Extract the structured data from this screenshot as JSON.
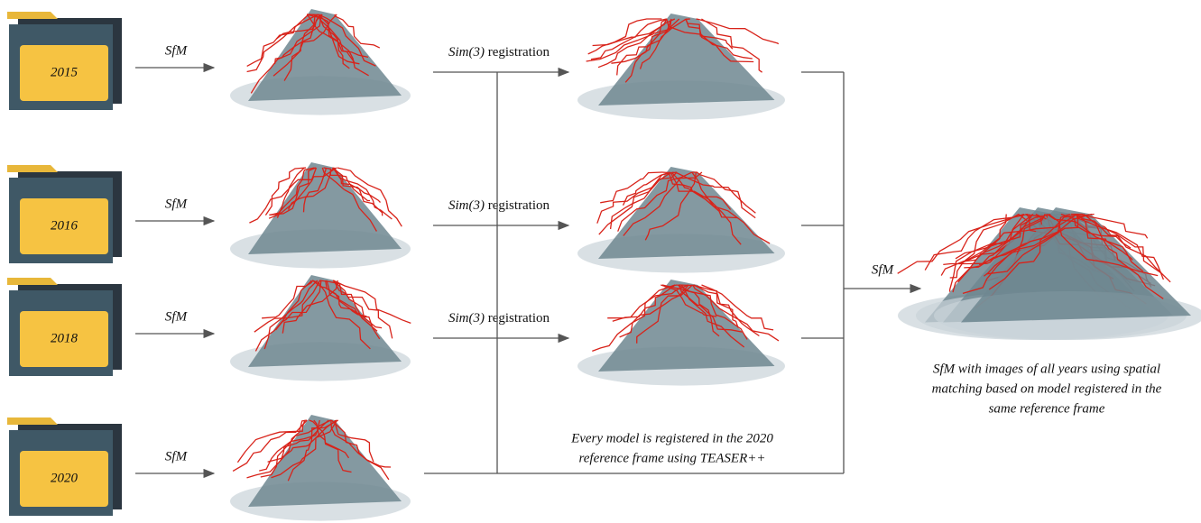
{
  "folders": [
    {
      "year": "2015"
    },
    {
      "year": "2016"
    },
    {
      "year": "2018"
    },
    {
      "year": "2020"
    }
  ],
  "sfm_steps": [
    {
      "label": "SfM"
    },
    {
      "label": "SfM"
    },
    {
      "label": "SfM"
    },
    {
      "label": "SfM"
    }
  ],
  "registrations": [
    {
      "method": "Sim(3)",
      "label": "registration"
    },
    {
      "method": "Sim(3)",
      "label": "registration"
    },
    {
      "method": "Sim(3)",
      "label": "registration"
    }
  ],
  "registration_caption": {
    "lines": [
      "Every model is registered in the 2020",
      "reference frame using TEASER++"
    ]
  },
  "merge": {
    "label": "SfM"
  },
  "result_caption": {
    "lines": [
      "SfM with images of all years using spatial",
      "matching based on model registered in the",
      "same reference frame"
    ]
  }
}
